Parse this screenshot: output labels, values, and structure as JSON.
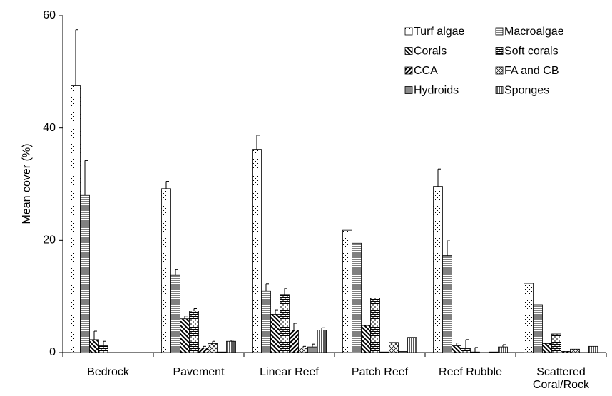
{
  "chart_data": {
    "type": "bar",
    "y_label": "Mean cover (%)",
    "categories": [
      "Bedrock",
      "Pavement",
      "Linear Reef",
      "Patch Reef",
      "Reef Rubble",
      "Scattered Coral/Rock"
    ],
    "ylim": [
      0,
      60
    ],
    "yticks": [
      0,
      20,
      40,
      60
    ],
    "legend": "top-right",
    "series": [
      {
        "name": "Turf algae",
        "pattern": "dots",
        "color": "#000000",
        "values": [
          47.5,
          29.2,
          36.2,
          21.8,
          29.6,
          12.3
        ],
        "errors": [
          10,
          1.3,
          2.5,
          0,
          3.1,
          0
        ]
      },
      {
        "name": "Macroalgae",
        "pattern": "hlines",
        "color": "#000000",
        "values": [
          28,
          13.8,
          11,
          19.5,
          17.3,
          8.5
        ],
        "errors": [
          6.2,
          1,
          1.2,
          0,
          2.6,
          0
        ]
      },
      {
        "name": "Corals",
        "pattern": "backdiag",
        "color": "#000000",
        "values": [
          2.3,
          6,
          6.8,
          4.8,
          1.2,
          1.6
        ],
        "errors": [
          1.5,
          0.5,
          0.8,
          0,
          0.5,
          0
        ]
      },
      {
        "name": "Soft corals",
        "pattern": "brick",
        "color": "#000000",
        "values": [
          1.2,
          7.4,
          10.3,
          9.7,
          0.7,
          3.3
        ],
        "errors": [
          0.8,
          0.4,
          1.1,
          0,
          1.6,
          0
        ]
      },
      {
        "name": "CCA",
        "pattern": "fwddiag",
        "color": "#000000",
        "values": [
          0,
          0.8,
          4,
          0.1,
          0.1,
          0.2
        ],
        "errors": [
          0,
          0.3,
          1.2,
          0,
          0.8,
          0
        ]
      },
      {
        "name": "FA and CB",
        "pattern": "crosshatch",
        "color": "#000000",
        "values": [
          0,
          1.6,
          0.8,
          1.8,
          0,
          0.6
        ],
        "errors": [
          0,
          0.4,
          0.3,
          0,
          0,
          0
        ]
      },
      {
        "name": "Hydroids",
        "pattern": "solid",
        "color": "#8c8c8c",
        "values": [
          0,
          0.1,
          1,
          0.2,
          0.1,
          0
        ],
        "errors": [
          0,
          0,
          0.5,
          0,
          0,
          0
        ]
      },
      {
        "name": "Sponges",
        "pattern": "vlines",
        "color": "#000000",
        "values": [
          0,
          2,
          4,
          2.7,
          1,
          1.1
        ],
        "errors": [
          0,
          0.2,
          0.4,
          0,
          0.4,
          0
        ]
      }
    ]
  }
}
